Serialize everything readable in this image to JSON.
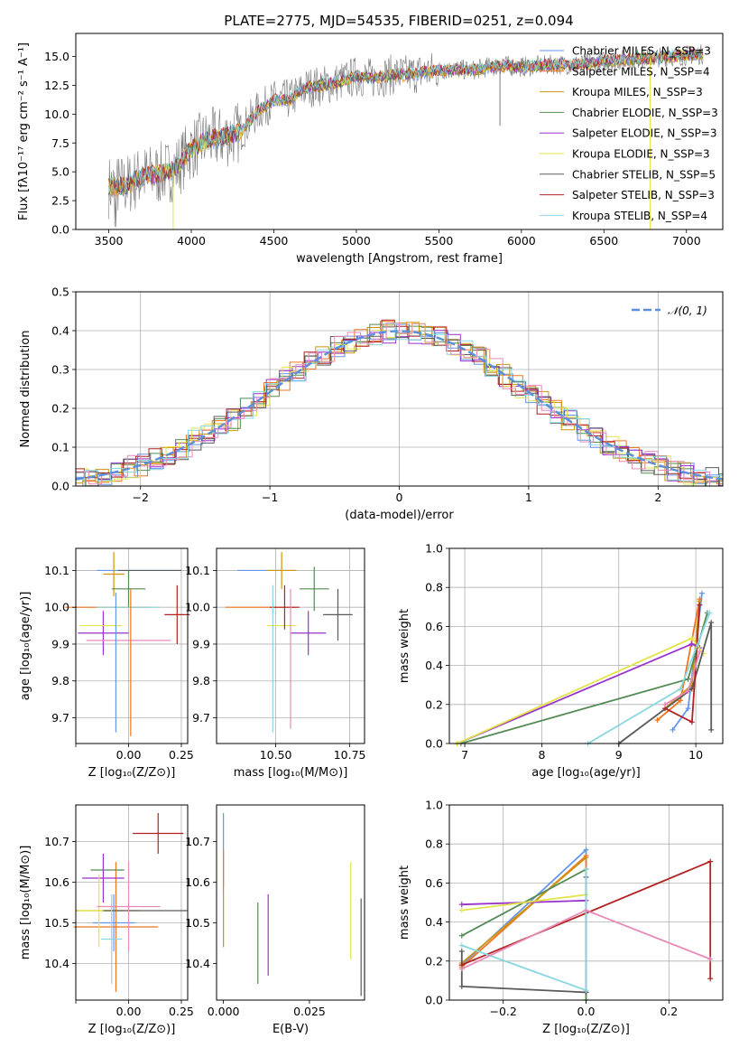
{
  "colors": [
    "#6495ed",
    "#ee7621",
    "#cd950c",
    "#548b54",
    "#9a32cd",
    "#e3e34a",
    "#5a5a5a",
    "#b22222",
    "#87d7e0",
    "#e88ab8"
  ],
  "figure": {
    "title": "PLATE=2775, MJD=54535, FIBERID=0251, z=0.094"
  },
  "chart_data": [
    {
      "id": "spectrum",
      "type": "line",
      "title": "PLATE=2775, MJD=54535, FIBERID=0251, z=0.094",
      "xlabel": "wavelength [Angstrom, rest frame]",
      "ylabel": "Flux [fλ10⁻¹⁷ erg cm⁻² s⁻¹ A⁻¹]",
      "xlim": [
        3300,
        7220
      ],
      "ylim": [
        0,
        17
      ],
      "xticks": [
        3500,
        4000,
        4500,
        5000,
        5500,
        6000,
        6500,
        7000
      ],
      "xticklabels": [
        "3500",
        "4000",
        "4500",
        "5000",
        "5500",
        "6000",
        "6500",
        "7000"
      ],
      "yticks": [
        0,
        2.5,
        5,
        7.5,
        10,
        12.5,
        15
      ],
      "yticklabels": [
        "0.0",
        "2.5",
        "5.0",
        "7.5",
        "10.0",
        "12.5",
        "15.0"
      ],
      "x": [
        3500,
        3600,
        3700,
        3800,
        3900,
        4000,
        4100,
        4200,
        4300,
        4400,
        4500,
        4600,
        4700,
        4800,
        4900,
        5000,
        5100,
        5200,
        5300,
        5400,
        5500,
        5600,
        5700,
        5800,
        5900,
        6000,
        6100,
        6200,
        6300,
        6400,
        6500,
        6600,
        6700,
        6800,
        6900,
        7000,
        7100
      ],
      "model": [
        3.7,
        3.8,
        4.6,
        4.8,
        5.2,
        7.0,
        7.8,
        8.0,
        8.5,
        10.2,
        11.2,
        11.3,
        12.3,
        12.5,
        12.8,
        13.3,
        13.1,
        13.4,
        13.4,
        13.6,
        13.8,
        13.9,
        13.8,
        14.1,
        14.2,
        14.1,
        14.2,
        14.3,
        14.3,
        14.4,
        14.6,
        14.7,
        14.8,
        14.9,
        15.0,
        15.1,
        15.2
      ],
      "legend": [
        "Chabrier MILES, N_SSP=3",
        "Salpeter MILES, N_SSP=4",
        "Kroupa MILES, N_SSP=3",
        "Chabrier ELODIE, N_SSP=3",
        "Salpeter ELODIE, N_SSP=3",
        "Kroupa ELODIE, N_SSP=3",
        "Chabrier STELIB, N_SSP=5",
        "Salpeter STELIB, N_SSP=3",
        "Kroupa STELIB, N_SSP=4"
      ],
      "legend_loc": "upper right",
      "grid": false
    },
    {
      "id": "residuals",
      "type": "histogram",
      "xlabel": "(data-model)/error",
      "ylabel": "Normed distribution",
      "xlim": [
        -2.5,
        2.5
      ],
      "ylim": [
        0,
        0.5
      ],
      "xticks": [
        -2,
        -1,
        0,
        1,
        2
      ],
      "xticklabels": [
        "−2",
        "−1",
        "0",
        "1",
        "2"
      ],
      "yticks": [
        0,
        0.1,
        0.2,
        0.3,
        0.4,
        0.5
      ],
      "yticklabels": [
        "0.0",
        "0.1",
        "0.2",
        "0.3",
        "0.4",
        "0.5"
      ],
      "bin_width": 0.1,
      "legend": [
        "𝒩(0, 1)"
      ],
      "legend_loc": "upper right",
      "grid": true
    },
    {
      "id": "age-vs-z",
      "type": "errorbar",
      "xlabel": "Z [log₁₀(Z/Z⊙)]",
      "ylabel": "age  [log₁₀(age/yr)]",
      "xlim": [
        -0.25,
        0.28
      ],
      "ylim": [
        9.63,
        10.16
      ],
      "xticks": [
        0,
        0.25
      ],
      "xticklabels": [
        "0.00",
        "0.25"
      ],
      "xticks_unlabeled": [
        -0.25
      ],
      "yticks": [
        9.7,
        9.8,
        9.9,
        10.0,
        10.1
      ],
      "yticklabels": [
        "9.7",
        "9.8",
        "9.9",
        "10.0",
        "10.1"
      ],
      "grid": true,
      "points": [
        {
          "x": 0.05,
          "y": 10.1,
          "xerr": 0.2,
          "yerr": 0.0
        },
        {
          "x": -0.1,
          "y": 10.0,
          "xerr": 0.2,
          "yerr": 0.0
        },
        {
          "x": -0.07,
          "y": 10.09,
          "xerr": 0.05,
          "yerr": 0.06
        },
        {
          "x": 0.0,
          "y": 10.05,
          "xerr": 0.08,
          "yerr": 0.05
        },
        {
          "x": -0.12,
          "y": 9.93,
          "xerr": 0.12,
          "yerr": 0.06
        },
        {
          "x": -0.13,
          "y": 9.95,
          "xerr": 0.1,
          "yerr": 0.0
        },
        {
          "x": 0.1,
          "y": 10.1,
          "xerr": 0.15,
          "yerr": 0.0
        },
        {
          "x": 0.23,
          "y": 9.98,
          "xerr": 0.06,
          "yerr": 0.08
        },
        {
          "x": 0.0,
          "y": 10.0,
          "xerr": 0.15,
          "yerr": 0.0
        },
        {
          "x": 0.0,
          "y": 9.91,
          "xerr": 0.2,
          "yerr": 0.0
        },
        {
          "x": -0.06,
          "y": 9.85,
          "xerr": 0.0,
          "yerr": 0.19
        },
        {
          "x": 0.01,
          "y": 9.85,
          "xerr": 0.0,
          "yerr": 0.2
        }
      ]
    },
    {
      "id": "age-vs-mass",
      "type": "errorbar",
      "xlabel": "mass [log₁₀(M/M⊙)]",
      "ylabel": "",
      "xlim": [
        10.3,
        10.8
      ],
      "ylim": [
        9.63,
        10.16
      ],
      "xticks": [
        10.5,
        10.75
      ],
      "xticklabels": [
        "10.50",
        "10.75"
      ],
      "yticks": [
        9.7,
        9.8,
        9.9,
        10.0,
        10.1
      ],
      "yticklabels": [
        "9.7",
        "9.8",
        "9.9",
        "10.0",
        "10.1"
      ],
      "grid": true,
      "points": [
        {
          "x": 10.47,
          "y": 10.1,
          "xerr": 0.1,
          "yerr": 0.0
        },
        {
          "x": 10.45,
          "y": 10.0,
          "xerr": 0.12,
          "yerr": 0.0
        },
        {
          "x": 10.52,
          "y": 10.1,
          "xerr": 0.05,
          "yerr": 0.05
        },
        {
          "x": 10.63,
          "y": 10.05,
          "xerr": 0.05,
          "yerr": 0.06
        },
        {
          "x": 10.61,
          "y": 9.93,
          "xerr": 0.06,
          "yerr": 0.06
        },
        {
          "x": 10.52,
          "y": 9.95,
          "xerr": 0.05,
          "yerr": 0.0
        },
        {
          "x": 10.71,
          "y": 9.98,
          "xerr": 0.05,
          "yerr": 0.07
        },
        {
          "x": 10.53,
          "y": 10.0,
          "xerr": 0.05,
          "yerr": 0.06
        },
        {
          "x": 10.49,
          "y": 9.86,
          "xerr": 0.0,
          "yerr": 0.2
        },
        {
          "x": 10.55,
          "y": 9.86,
          "xerr": 0.0,
          "yerr": 0.19
        }
      ]
    },
    {
      "id": "weight-vs-age",
      "type": "line",
      "xlabel": "age  [log₁₀(age/yr)]",
      "ylabel": "mass weight",
      "xlim": [
        6.8,
        10.35
      ],
      "ylim": [
        0,
        1
      ],
      "xticks": [
        7,
        8,
        9,
        10
      ],
      "xticklabels": [
        "7",
        "8",
        "9",
        "10"
      ],
      "yticks": [
        0,
        0.2,
        0.4,
        0.6,
        0.8,
        1.0
      ],
      "yticklabels": [
        "0.0",
        "0.2",
        "0.4",
        "0.6",
        "0.8",
        "1.0"
      ],
      "grid": true,
      "series": [
        {
          "x": [
            9.7,
            9.9,
            10.08
          ],
          "y": [
            0.07,
            0.18,
            0.77
          ]
        },
        {
          "x": [
            9.5,
            9.8,
            10.05
          ],
          "y": [
            0.12,
            0.22,
            0.74
          ]
        },
        {
          "x": [
            9.6,
            9.95,
            10.05
          ],
          "y": [
            0.18,
            0.3,
            0.73
          ]
        },
        {
          "x": [
            6.95,
            9.9,
            10.15
          ],
          "y": [
            0.0,
            0.33,
            0.67
          ]
        },
        {
          "x": [
            6.9,
            9.95,
            10.05
          ],
          "y": [
            0.0,
            0.51,
            0.49
          ]
        },
        {
          "x": [
            6.9,
            9.95,
            10.1
          ],
          "y": [
            0.0,
            0.54,
            0.46
          ]
        },
        {
          "x": [
            9.0,
            9.95,
            10.2,
            10.2
          ],
          "y": [
            0.0,
            0.28,
            0.62,
            0.07
          ]
        },
        {
          "x": [
            9.6,
            9.95,
            10.05
          ],
          "y": [
            0.18,
            0.11,
            0.71
          ]
        },
        {
          "x": [
            8.6,
            9.8,
            10.18
          ],
          "y": [
            0.0,
            0.28,
            0.67
          ]
        },
        {
          "x": [
            9.6,
            9.9,
            10.05
          ],
          "y": [
            0.2,
            0.27,
            0.47
          ]
        }
      ]
    },
    {
      "id": "mass-vs-z",
      "type": "errorbar",
      "xlabel": "Z [log₁₀(Z/Z⊙)]",
      "ylabel": "mass [log₁₀(M/M⊙)]",
      "xlim": [
        -0.25,
        0.28
      ],
      "ylim": [
        10.31,
        10.79
      ],
      "xticks": [
        0,
        0.25
      ],
      "xticklabels": [
        "0.00",
        "0.25"
      ],
      "xticks_unlabeled": [
        -0.25
      ],
      "yticks": [
        10.4,
        10.5,
        10.6,
        10.7
      ],
      "yticklabels": [
        "10.4",
        "10.5",
        "10.6",
        "10.7"
      ],
      "grid": true,
      "points": [
        {
          "x": -0.07,
          "y": 10.5,
          "xerr": 0.1,
          "yerr": 0.07
        },
        {
          "x": -0.06,
          "y": 10.49,
          "xerr": 0.2,
          "yerr": 0.16
        },
        {
          "x": -0.1,
          "y": 10.53,
          "xerr": 0.15,
          "yerr": 0.0
        },
        {
          "x": -0.1,
          "y": 10.63,
          "xerr": 0.08,
          "yerr": 0.0
        },
        {
          "x": -0.12,
          "y": 10.61,
          "xerr": 0.1,
          "yerr": 0.06
        },
        {
          "x": -0.14,
          "y": 10.53,
          "xerr": 0.1,
          "yerr": 0.09
        },
        {
          "x": 0.08,
          "y": 10.53,
          "xerr": 0.2,
          "yerr": 0.0
        },
        {
          "x": 0.14,
          "y": 10.72,
          "xerr": 0.12,
          "yerr": 0.05
        },
        {
          "x": -0.08,
          "y": 10.46,
          "xerr": 0.05,
          "yerr": 0.11
        },
        {
          "x": 0.0,
          "y": 10.54,
          "xerr": 0.15,
          "yerr": 0.11
        }
      ]
    },
    {
      "id": "mass-vs-ebv",
      "type": "errorbar",
      "xlabel": "E(B-V)",
      "ylabel": "",
      "xlim": [
        -0.002,
        0.041
      ],
      "ylim": [
        10.31,
        10.79
      ],
      "xticks": [
        0,
        0.025
      ],
      "xticklabels": [
        "0.000",
        "0.025"
      ],
      "yticks": [
        10.4,
        10.5,
        10.6,
        10.7
      ],
      "yticklabels": [
        "10.4",
        "10.5",
        "10.6",
        "10.7"
      ],
      "grid": false,
      "points": [
        {
          "x": 0.0,
          "y": 10.68,
          "xerr": 0,
          "yerr": 0.09
        },
        {
          "x": 0.0,
          "y": 10.63,
          "xerr": 0,
          "yerr": 0.05
        },
        {
          "x": 0.0,
          "y": 10.51,
          "xerr": 0,
          "yerr": 0.07
        },
        {
          "x": 0.01,
          "y": 10.45,
          "xerr": 0,
          "yerr": 0.1
        },
        {
          "x": 0.013,
          "y": 10.47,
          "xerr": 0,
          "yerr": 0.1
        },
        {
          "x": 0.037,
          "y": 10.53,
          "xerr": 0,
          "yerr": 0.12
        },
        {
          "x": 0.04,
          "y": 10.44,
          "xerr": 0,
          "yerr": 0.12
        }
      ]
    },
    {
      "id": "weight-vs-z",
      "type": "line",
      "xlabel": "Z [log₁₀(Z/Z⊙)]",
      "ylabel": "mass weight",
      "xlim": [
        -0.33,
        0.33
      ],
      "ylim": [
        0,
        1
      ],
      "xticks": [
        -0.2,
        0,
        0.2
      ],
      "xticklabels": [
        "−0.2",
        "0.0",
        "0.2"
      ],
      "yticks": [
        0,
        0.2,
        0.4,
        0.6,
        0.8,
        1.0
      ],
      "yticklabels": [
        "0.0",
        "0.2",
        "0.4",
        "0.6",
        "0.8",
        "1.0"
      ],
      "grid": true,
      "series": [
        {
          "x": [
            -0.3,
            0.0,
            0.0
          ],
          "y": [
            0.18,
            0.77,
            0.04
          ]
        },
        {
          "x": [
            -0.3,
            0.0,
            0.0
          ],
          "y": [
            0.17,
            0.74,
            0.04
          ]
        },
        {
          "x": [
            -0.3,
            0.0
          ],
          "y": [
            0.19,
            0.73
          ]
        },
        {
          "x": [
            -0.3,
            0.0,
            0.0
          ],
          "y": [
            0.33,
            0.67,
            0.0
          ]
        },
        {
          "x": [
            -0.3,
            0.0
          ],
          "y": [
            0.49,
            0.51
          ]
        },
        {
          "x": [
            -0.3,
            0.0
          ],
          "y": [
            0.46,
            0.54
          ]
        },
        {
          "x": [
            -0.3,
            -0.3,
            0.0,
            0.0
          ],
          "y": [
            0.25,
            0.07,
            0.04,
            0.63
          ]
        },
        {
          "x": [
            -0.3,
            0.3,
            0.3
          ],
          "y": [
            0.18,
            0.71,
            0.11
          ]
        },
        {
          "x": [
            -0.3,
            0.0,
            0.0
          ],
          "y": [
            0.28,
            0.05,
            0.67
          ]
        },
        {
          "x": [
            -0.3,
            0.0,
            0.3
          ],
          "y": [
            0.16,
            0.46,
            0.21
          ]
        }
      ]
    }
  ]
}
